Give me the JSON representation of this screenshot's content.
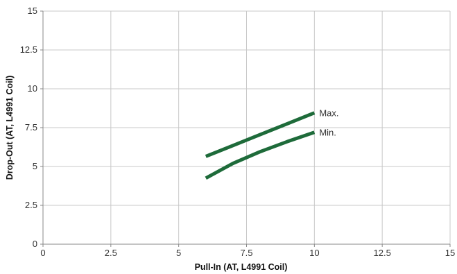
{
  "chart_data": {
    "type": "line",
    "title": "",
    "xlabel": "Pull-In (AT, L4991 Coil)",
    "ylabel": "Drop-Out (AT, L4991 Coil)",
    "xlim": [
      0,
      15
    ],
    "ylim": [
      0,
      15
    ],
    "xticks": [
      0,
      2.5,
      5,
      7.5,
      10,
      12.5,
      15
    ],
    "yticks": [
      0,
      2.5,
      5,
      7.5,
      10,
      12.5,
      15
    ],
    "xtick_labels": [
      "0",
      "2.5",
      "5",
      "7.5",
      "10",
      "12.5",
      "15"
    ],
    "ytick_labels": [
      "0",
      "2.5",
      "5",
      "7.5",
      "10",
      "12.5",
      "15"
    ],
    "grid": true,
    "legend": "none",
    "series": [
      {
        "name": "Max.",
        "color": "#1e6b3a",
        "x": [
          6,
          7,
          8,
          9,
          10
        ],
        "y": [
          5.65,
          6.35,
          7.05,
          7.75,
          8.45
        ]
      },
      {
        "name": "Min.",
        "color": "#1e6b3a",
        "x": [
          6,
          7,
          8,
          9,
          10
        ],
        "y": [
          4.25,
          5.2,
          5.95,
          6.6,
          7.2
        ]
      }
    ]
  }
}
